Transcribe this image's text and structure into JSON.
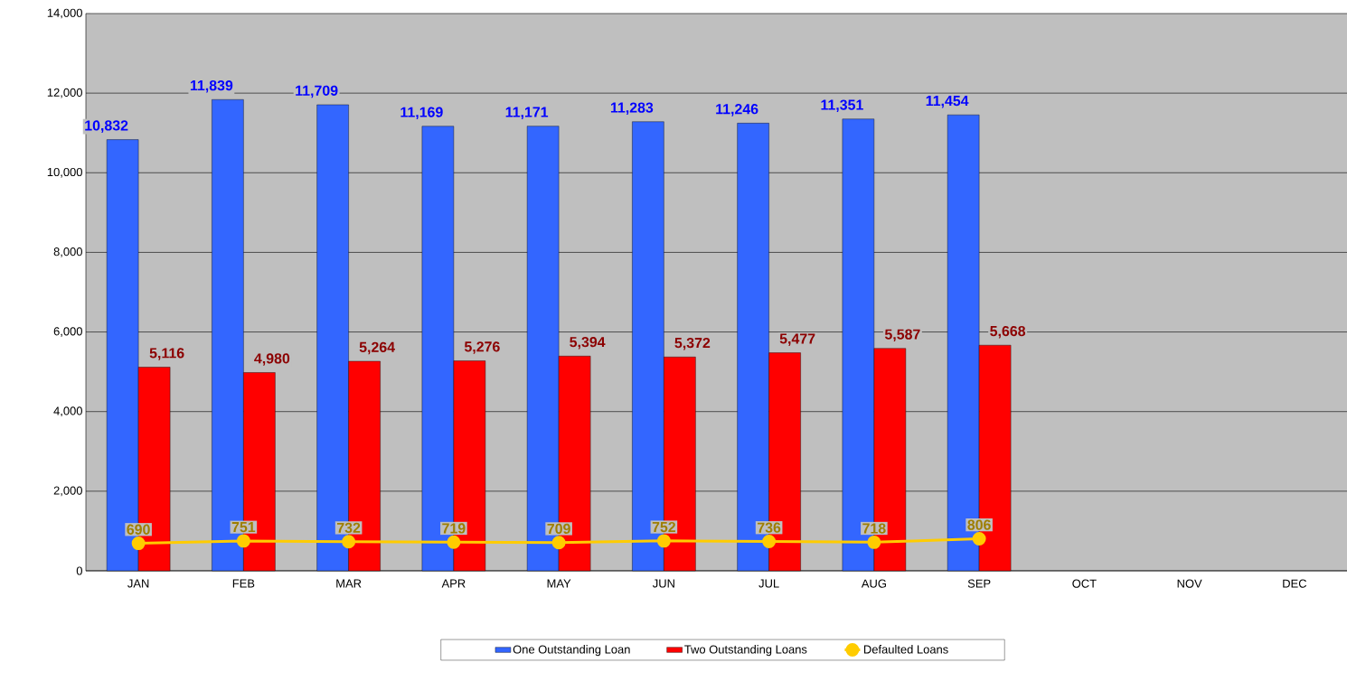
{
  "chart_data": {
    "type": "bar",
    "categories": [
      "JAN",
      "FEB",
      "MAR",
      "APR",
      "MAY",
      "JUN",
      "JUL",
      "AUG",
      "SEP",
      "OCT",
      "NOV",
      "DEC"
    ],
    "series": [
      {
        "name": "One Outstanding Loan",
        "color": "#3366ff",
        "values": [
          10832,
          11839,
          11709,
          11169,
          11171,
          11283,
          11246,
          11351,
          11454,
          null,
          null,
          null
        ],
        "value_labels": [
          "10,832",
          "11,839",
          "11,709",
          "11,169",
          "11,171",
          "11,283",
          "11,246",
          "11,351",
          "11,454",
          null,
          null,
          null
        ]
      },
      {
        "name": "Two Outstanding Loans",
        "color": "#ff0000",
        "values": [
          5116,
          4980,
          5264,
          5276,
          5394,
          5372,
          5477,
          5587,
          5668,
          null,
          null,
          null
        ],
        "value_labels": [
          "5,116",
          "4,980",
          "5,264",
          "5,276",
          "5,394",
          "5,372",
          "5,477",
          "5,587",
          "5,668",
          null,
          null,
          null
        ]
      },
      {
        "name": "Defaulted Loans",
        "type": "line",
        "color": "#ffcc00",
        "values": [
          690,
          751,
          732,
          719,
          709,
          752,
          736,
          718,
          806,
          null,
          null,
          null
        ],
        "value_labels": [
          "690",
          "751",
          "732",
          "719",
          "709",
          "752",
          "736",
          "718",
          "806",
          null,
          null,
          null
        ]
      }
    ],
    "ylim": [
      0,
      14000
    ],
    "yticks": [
      0,
      {
        "value": 2000,
        "label": "2,000"
      },
      {
        "value": 4000,
        "label": "4,000"
      },
      {
        "value": 6000,
        "label": "6,000"
      },
      {
        "value": 8000,
        "label": "8,000"
      },
      {
        "value": 10000,
        "label": "10,000"
      },
      {
        "value": 12000,
        "label": "12,000"
      },
      {
        "value": 14000,
        "label": "14,000"
      }
    ],
    "grid": "y",
    "legend": "bottom",
    "marker": "circle"
  }
}
